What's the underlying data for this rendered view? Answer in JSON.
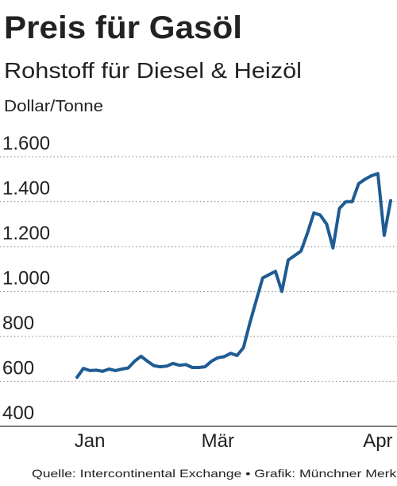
{
  "chart_data": {
    "type": "line",
    "title": "Preis für Gasöl",
    "subtitle": "Rohstoff für Diesel & Heizöl",
    "y_label": "Dollar/Tonne",
    "source": "Quelle: Intercontinental Exchange • Grafik: Münchner Merkur",
    "categories": [
      null,
      null,
      "Jan",
      null,
      null,
      null,
      null,
      null,
      null,
      null,
      null,
      null,
      null,
      null,
      null,
      null,
      null,
      null,
      null,
      null,
      null,
      null,
      "Mär",
      null,
      null,
      null,
      null,
      null,
      null,
      null,
      null,
      null,
      null,
      null,
      null,
      null,
      null,
      null,
      null,
      null,
      null,
      null,
      null,
      null,
      null,
      null,
      null,
      "Apr",
      null,
      null
    ],
    "series": [
      {
        "color": "#1f5b93",
        "values": [
          618,
          658,
          648,
          650,
          645,
          655,
          648,
          655,
          660,
          690,
          712,
          690,
          670,
          665,
          668,
          680,
          672,
          675,
          662,
          662,
          665,
          690,
          705,
          710,
          725,
          715,
          750,
          860,
          960,
          1060,
          1075,
          1090,
          1000,
          1140,
          1160,
          1180,
          1260,
          1350,
          1340,
          1300,
          1194,
          1370,
          1400,
          1400,
          1480,
          1500,
          1515,
          1525,
          1250,
          1405
        ]
      }
    ],
    "ylim": [
      400,
      1600
    ],
    "yticks": [
      400,
      600,
      800,
      {
        "value": 1000,
        "label": "1.000"
      },
      {
        "value": 1200,
        "label": "1.200"
      },
      {
        "value": 1400,
        "label": "1.400"
      },
      {
        "value": 1600,
        "label": "1.600"
      }
    ],
    "grid": true
  }
}
